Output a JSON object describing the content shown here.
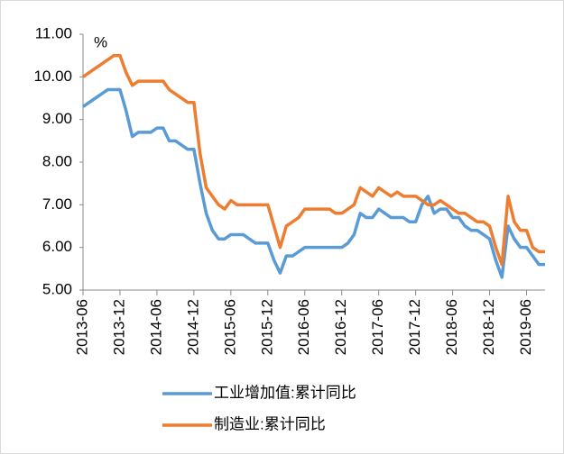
{
  "chart_data": {
    "type": "line",
    "y_label": "%",
    "x": [
      "2013-06",
      "2013-07",
      "2013-08",
      "2013-09",
      "2013-10",
      "2013-11",
      "2013-12",
      "2014-01",
      "2014-02",
      "2014-03",
      "2014-04",
      "2014-05",
      "2014-06",
      "2014-07",
      "2014-08",
      "2014-09",
      "2014-10",
      "2014-11",
      "2014-12",
      "2015-01",
      "2015-02",
      "2015-03",
      "2015-04",
      "2015-05",
      "2015-06",
      "2015-07",
      "2015-08",
      "2015-09",
      "2015-10",
      "2015-11",
      "2015-12",
      "2016-01",
      "2016-02",
      "2016-03",
      "2016-04",
      "2016-05",
      "2016-06",
      "2016-07",
      "2016-08",
      "2016-09",
      "2016-10",
      "2016-11",
      "2016-12",
      "2017-01",
      "2017-02",
      "2017-03",
      "2017-04",
      "2017-05",
      "2017-06",
      "2017-07",
      "2017-08",
      "2017-09",
      "2017-10",
      "2017-11",
      "2017-12",
      "2018-01",
      "2018-02",
      "2018-03",
      "2018-04",
      "2018-05",
      "2018-06",
      "2018-07",
      "2018-08",
      "2018-09",
      "2018-10",
      "2018-11",
      "2018-12",
      "2019-01",
      "2019-02",
      "2019-03",
      "2019-04",
      "2019-05",
      "2019-06",
      "2019-07",
      "2019-08",
      "2019-09"
    ],
    "series": [
      {
        "name": "工业增加值:累计同比",
        "color": "#5b9bd5",
        "values": [
          9.3,
          9.4,
          9.5,
          9.6,
          9.7,
          9.7,
          9.7,
          9.2,
          8.6,
          8.7,
          8.7,
          8.7,
          8.8,
          8.8,
          8.5,
          8.5,
          8.4,
          8.3,
          8.3,
          7.5,
          6.8,
          6.4,
          6.2,
          6.2,
          6.3,
          6.3,
          6.3,
          6.2,
          6.1,
          6.1,
          6.1,
          5.7,
          5.4,
          5.8,
          5.8,
          5.9,
          6.0,
          6.0,
          6.0,
          6.0,
          6.0,
          6.0,
          6.0,
          6.1,
          6.3,
          6.8,
          6.7,
          6.7,
          6.9,
          6.8,
          6.7,
          6.7,
          6.7,
          6.6,
          6.6,
          7.0,
          7.2,
          6.8,
          6.9,
          6.9,
          6.7,
          6.7,
          6.5,
          6.4,
          6.4,
          6.3,
          6.2,
          5.7,
          5.3,
          6.5,
          6.2,
          6.0,
          6.0,
          5.8,
          5.6,
          5.6
        ]
      },
      {
        "name": "制造业:累计同比",
        "color": "#ed7d31",
        "values": [
          10.0,
          10.1,
          10.2,
          10.3,
          10.4,
          10.5,
          10.5,
          10.1,
          9.8,
          9.9,
          9.9,
          9.9,
          9.9,
          9.9,
          9.7,
          9.6,
          9.5,
          9.4,
          9.4,
          8.2,
          7.4,
          7.2,
          7.0,
          6.9,
          7.1,
          7.0,
          7.0,
          7.0,
          7.0,
          7.0,
          7.0,
          6.5,
          6.0,
          6.5,
          6.6,
          6.7,
          6.9,
          6.9,
          6.9,
          6.9,
          6.9,
          6.8,
          6.8,
          6.9,
          7.0,
          7.4,
          7.3,
          7.2,
          7.4,
          7.3,
          7.2,
          7.3,
          7.2,
          7.2,
          7.2,
          7.1,
          7.0,
          7.0,
          7.1,
          7.0,
          6.9,
          6.8,
          6.8,
          6.7,
          6.6,
          6.6,
          6.5,
          6.0,
          5.6,
          7.2,
          6.6,
          6.4,
          6.4,
          6.0,
          5.9,
          5.9
        ]
      }
    ],
    "xlim": [
      "2013-06",
      "2019-09"
    ],
    "xticks": [
      "2013-06",
      "2013-12",
      "2014-06",
      "2014-12",
      "2015-06",
      "2015-12",
      "2016-06",
      "2016-12",
      "2017-06",
      "2017-12",
      "2018-06",
      "2018-12",
      "2019-06"
    ],
    "ylim": [
      5,
      11
    ],
    "yticks": [
      {
        "value": 5,
        "label": "5.00"
      },
      {
        "value": 6,
        "label": "6.00"
      },
      {
        "value": 7,
        "label": "7.00"
      },
      {
        "value": 8,
        "label": "8.00"
      },
      {
        "value": 9,
        "label": "9.00"
      },
      {
        "value": 10,
        "label": "10.00"
      },
      {
        "value": 11,
        "label": "11.00"
      }
    ],
    "grid": false,
    "legend": "bottom"
  }
}
